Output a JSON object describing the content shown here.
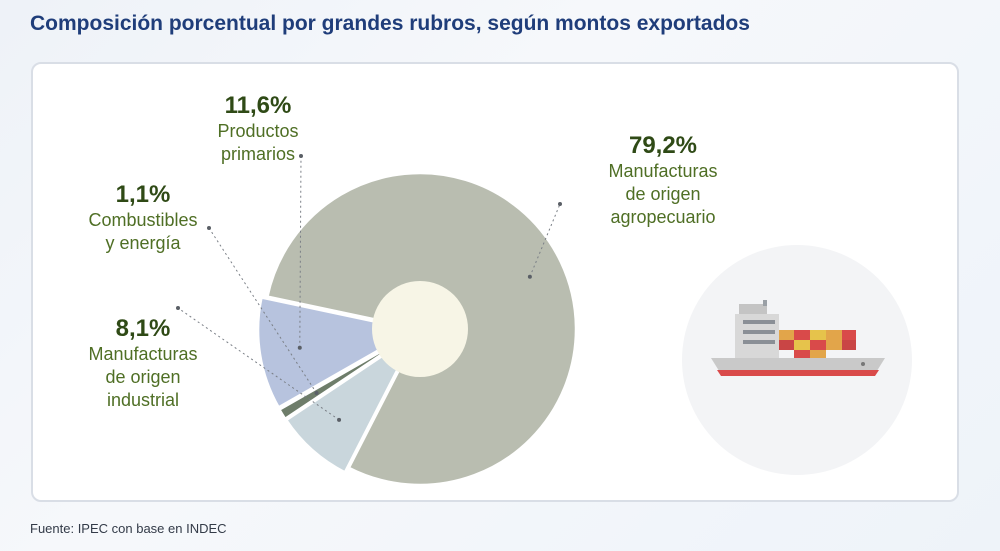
{
  "title": "Composición porcentual por grandes rubros, según montos exportados",
  "source": "Fuente: IPEC con base en INDEC",
  "colors": {
    "title": "#1f3d7a",
    "manufacturas_agro": "#b9bdb0",
    "productos_primarios": "#b7c3de",
    "combustibles": "#6e7d6a",
    "manufacturas_industrial": "#c9d6dc",
    "center_hole": "#f7f5e6",
    "label_text": "#4f6f25"
  },
  "icons": [
    "cargo-ship-icon"
  ],
  "chart_data": {
    "type": "pie",
    "title": "Composición porcentual por grandes rubros, según montos exportados",
    "slices": [
      {
        "label_lines": "Manufacturas\nde origen\nagropecuario",
        "value": 79.2,
        "display": "79,2%",
        "color": "#b9bdb0"
      },
      {
        "label_lines": "Manufacturas\nde origen\nindustrial",
        "value": 8.1,
        "display": "8,1%",
        "color": "#c9d6dc"
      },
      {
        "label_lines": "Combustibles\ny energía",
        "value": 1.1,
        "display": "1,1%",
        "color": "#6e7d6a"
      },
      {
        "label_lines": "Productos\nprimarios",
        "value": 11.6,
        "display": "11,6%",
        "color": "#b7c3de"
      }
    ],
    "legend": "none"
  }
}
